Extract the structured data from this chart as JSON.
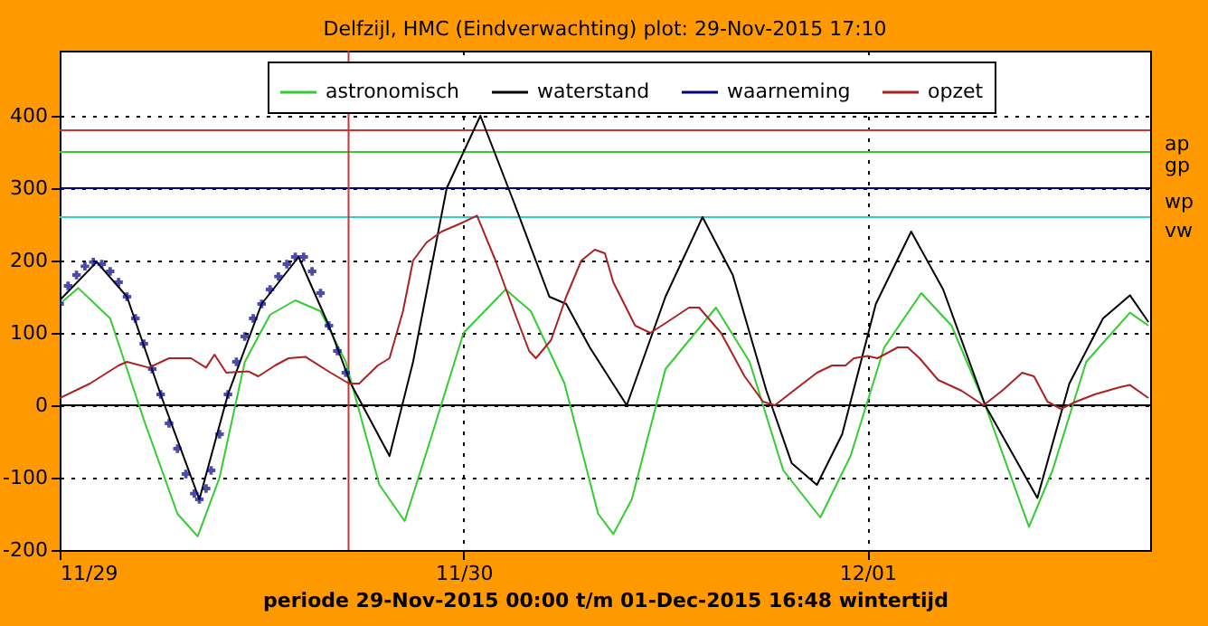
{
  "chart_data": {
    "type": "line",
    "title": "Delfzijl, HMC (Eindverwachting) plot: 29-Nov-2015 17:10",
    "xlabel": "periode 29-Nov-2015 00:00 t/m 01-Dec-2015 16:48 wintertijd",
    "xlim": [
      "2015-11-29T00:00",
      "2015-12-01T16:48"
    ],
    "xticks": [
      {
        "value": "2015-11-29",
        "label": "11/29"
      },
      {
        "value": "2015-11-30",
        "label": "11/30"
      },
      {
        "value": "2015-12-01",
        "label": "12/01"
      }
    ],
    "ylim": [
      -200,
      490
    ],
    "yticks": [
      -200,
      -100,
      0,
      100,
      200,
      300,
      400
    ],
    "grid": true,
    "legend": "top",
    "line_style": "solid",
    "series": [
      {
        "name": "astronomisch",
        "color": "#33cc33",
        "x": [
          "2015-11-29T00:00",
          "2015-11-29T01:06",
          "2015-11-29T03:00",
          "2015-11-29T05:00",
          "2015-11-29T07:00",
          "2015-11-29T08:12",
          "2015-11-29T09:30",
          "2015-11-29T11:00",
          "2015-11-29T12:30",
          "2015-11-29T14:00",
          "2015-11-29T15:30",
          "2015-11-29T17:00",
          "2015-11-29T19:00",
          "2015-11-29T20:30",
          "2015-11-29T22:00",
          "2015-11-30T00:00",
          "2015-11-30T02:30",
          "2015-11-30T04:00",
          "2015-11-30T06:00",
          "2015-11-30T08:00",
          "2015-11-30T08:54",
          "2015-11-30T10:00",
          "2015-11-30T12:00",
          "2015-11-30T15:00",
          "2015-11-30T17:00",
          "2015-11-30T19:00",
          "2015-11-30T21:12",
          "2015-11-30T23:00",
          "2015-12-01T01:00",
          "2015-12-01T03:12",
          "2015-12-01T05:00",
          "2015-12-01T07:00",
          "2015-12-01T09:36",
          "2015-12-01T11:00",
          "2015-12-01T13:00",
          "2015-12-01T15:36",
          "2015-12-01T16:42"
        ],
        "values": [
          140,
          162,
          120,
          -20,
          -150,
          -181,
          -100,
          60,
          125,
          145,
          130,
          60,
          -110,
          -160,
          -50,
          100,
          160,
          130,
          30,
          -150,
          -178,
          -130,
          50,
          135,
          60,
          -90,
          -155,
          -70,
          80,
          155,
          110,
          0,
          -168,
          -90,
          60,
          128,
          110
        ]
      },
      {
        "name": "waterstand",
        "color": "#000000",
        "x": [
          "2015-11-29T00:00",
          "2015-11-29T02:12",
          "2015-11-29T04:00",
          "2015-11-29T06:00",
          "2015-11-29T08:18",
          "2015-11-29T10:00",
          "2015-11-29T12:00",
          "2015-11-29T14:12",
          "2015-11-29T16:00",
          "2015-11-29T17:18",
          "2015-11-29T19:36",
          "2015-11-29T21:00",
          "2015-11-29T23:00",
          "2015-11-30T01:00",
          "2015-11-30T03:00",
          "2015-11-30T05:06",
          "2015-11-30T06:06",
          "2015-11-30T07:30",
          "2015-11-30T09:42",
          "2015-11-30T12:00",
          "2015-11-30T14:12",
          "2015-11-30T16:00",
          "2015-11-30T18:00",
          "2015-11-30T19:30",
          "2015-11-30T21:00",
          "2015-11-30T22:30",
          "2015-12-01T00:30",
          "2015-12-01T02:36",
          "2015-12-01T04:30",
          "2015-12-01T07:00",
          "2015-12-01T10:06",
          "2015-12-01T12:00",
          "2015-12-01T14:00",
          "2015-12-01T15:36",
          "2015-12-01T16:42"
        ],
        "values": [
          145,
          198,
          150,
          15,
          -130,
          15,
          140,
          205,
          110,
          30,
          -70,
          60,
          300,
          400,
          280,
          150,
          140,
          80,
          0,
          150,
          260,
          180,
          20,
          -80,
          -110,
          -40,
          140,
          240,
          160,
          0,
          -128,
          30,
          120,
          152,
          115
        ]
      },
      {
        "name": "waarneming",
        "type": "scatter",
        "marker": "cross",
        "color": "#000080",
        "x": [
          "2015-11-29T00:00",
          "2015-11-29T00:30",
          "2015-11-29T01:00",
          "2015-11-29T01:30",
          "2015-11-29T02:00",
          "2015-11-29T02:30",
          "2015-11-29T03:00",
          "2015-11-29T03:30",
          "2015-11-29T04:00",
          "2015-11-29T04:30",
          "2015-11-29T05:00",
          "2015-11-29T05:30",
          "2015-11-29T06:00",
          "2015-11-29T06:30",
          "2015-11-29T07:00",
          "2015-11-29T07:30",
          "2015-11-29T08:00",
          "2015-11-29T08:18",
          "2015-11-29T08:42",
          "2015-11-29T09:00",
          "2015-11-29T09:30",
          "2015-11-29T10:00",
          "2015-11-29T10:30",
          "2015-11-29T11:00",
          "2015-11-29T11:30",
          "2015-11-29T12:00",
          "2015-11-29T12:30",
          "2015-11-29T13:00",
          "2015-11-29T13:30",
          "2015-11-29T14:00",
          "2015-11-29T14:30",
          "2015-11-29T15:00",
          "2015-11-29T15:30",
          "2015-11-29T16:00",
          "2015-11-29T16:30",
          "2015-11-29T17:00"
        ],
        "values": [
          140,
          165,
          180,
          192,
          198,
          195,
          185,
          170,
          150,
          120,
          85,
          50,
          15,
          -25,
          -60,
          -95,
          -122,
          -130,
          -115,
          -90,
          -40,
          15,
          60,
          95,
          120,
          140,
          160,
          178,
          195,
          205,
          205,
          185,
          155,
          110,
          75,
          45
        ]
      },
      {
        "name": "opzet",
        "color": "#aa2222",
        "x": [
          "2015-11-29T00:00",
          "2015-11-29T01:48",
          "2015-11-29T03:30",
          "2015-11-29T04:00",
          "2015-11-29T05:18",
          "2015-11-29T06:30",
          "2015-11-29T07:48",
          "2015-11-29T08:42",
          "2015-11-29T09:12",
          "2015-11-29T09:54",
          "2015-11-29T11:12",
          "2015-11-29T11:48",
          "2015-11-29T12:48",
          "2015-11-29T13:36",
          "2015-11-29T14:36",
          "2015-11-29T16:06",
          "2015-11-29T17:12",
          "2015-11-29T17:48",
          "2015-11-29T18:54",
          "2015-11-29T19:36",
          "2015-11-29T20:24",
          "2015-11-29T21:00",
          "2015-11-29T21:48",
          "2015-11-29T22:42",
          "2015-11-29T23:42",
          "2015-11-30T00:48",
          "2015-11-30T01:54",
          "2015-11-30T03:00",
          "2015-11-30T03:54",
          "2015-11-30T04:18",
          "2015-11-30T05:12",
          "2015-11-30T06:06",
          "2015-11-30T07:00",
          "2015-11-30T07:48",
          "2015-11-30T08:24",
          "2015-11-30T08:54",
          "2015-11-30T10:12",
          "2015-11-30T11:06",
          "2015-11-30T12:06",
          "2015-11-30T13:24",
          "2015-11-30T14:00",
          "2015-11-30T15:18",
          "2015-11-30T16:42",
          "2015-11-30T17:48",
          "2015-11-30T18:30",
          "2015-11-30T19:36",
          "2015-11-30T21:00",
          "2015-11-30T21:54",
          "2015-11-30T22:42",
          "2015-11-30T23:12",
          "2015-12-01T00:00",
          "2015-12-01T00:36",
          "2015-12-01T01:48",
          "2015-12-01T02:24",
          "2015-12-01T03:06",
          "2015-12-01T04:12",
          "2015-12-01T05:36",
          "2015-12-01T06:54",
          "2015-12-01T08:00",
          "2015-12-01T09:12",
          "2015-12-01T09:54",
          "2015-12-01T10:42",
          "2015-12-01T11:30",
          "2015-12-01T12:24",
          "2015-12-01T13:30",
          "2015-12-01T15:00",
          "2015-12-01T15:36",
          "2015-12-01T16:42"
        ],
        "values": [
          10,
          30,
          55,
          60,
          52,
          65,
          65,
          52,
          70,
          45,
          47,
          40,
          55,
          65,
          67,
          45,
          30,
          30,
          55,
          65,
          130,
          200,
          225,
          240,
          250,
          262,
          200,
          130,
          75,
          65,
          90,
          150,
          200,
          215,
          210,
          170,
          110,
          100,
          115,
          135,
          135,
          100,
          40,
          5,
          0,
          20,
          45,
          55,
          55,
          65,
          68,
          65,
          80,
          80,
          65,
          35,
          20,
          0,
          20,
          45,
          40,
          5,
          -5,
          5,
          15,
          25,
          28,
          10
        ]
      }
    ],
    "ref_lines": [
      {
        "axis": "y",
        "value": 380,
        "label": "ap",
        "color": "#cc3333",
        "line_style": "solid"
      },
      {
        "axis": "y",
        "value": 350,
        "label": "gp",
        "color": "#33cc33",
        "line_style": "solid"
      },
      {
        "axis": "y",
        "value": 300,
        "label": "wp",
        "color": "#000080",
        "line_style": "solid"
      },
      {
        "axis": "y",
        "value": 260,
        "label": "vw",
        "color": "#33cccc",
        "line_style": "solid"
      },
      {
        "axis": "y",
        "value": 0,
        "color": "#000000",
        "line_style": "solid"
      },
      {
        "axis": "x",
        "value": "2015-11-29T17:10",
        "color": "#cc3333",
        "line_style": "solid"
      }
    ]
  }
}
